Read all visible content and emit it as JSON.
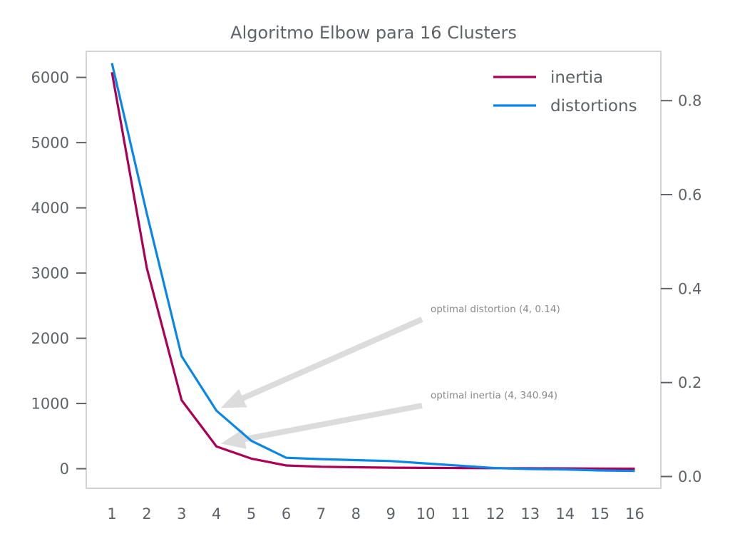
{
  "chart_data": {
    "type": "line",
    "title": "Algoritmo Elbow para 16 Clusters",
    "x": [
      1,
      2,
      3,
      4,
      5,
      6,
      7,
      8,
      9,
      10,
      11,
      12,
      13,
      14,
      15,
      16
    ],
    "x_ticks": [
      "1",
      "2",
      "3",
      "4",
      "5",
      "6",
      "7",
      "8",
      "9",
      "10",
      "11",
      "12",
      "13",
      "14",
      "15",
      "16"
    ],
    "y_left_ticks": [
      "0",
      "1000",
      "2000",
      "3000",
      "4000",
      "5000",
      "6000"
    ],
    "y_left_lim": [
      -300,
      6400
    ],
    "y_right_ticks": [
      "0.0",
      "0.2",
      "0.4",
      "0.6",
      "0.8"
    ],
    "y_right_lim": [
      -0.025,
      0.905
    ],
    "grid": false,
    "legend_position": "top-right",
    "series": [
      {
        "name": "inertia",
        "axis": "left",
        "color": "#aa0055",
        "values": [
          6080,
          3080,
          1050,
          340.94,
          155,
          50,
          30,
          22,
          16,
          13,
          10,
          8,
          6,
          5,
          3,
          1
        ]
      },
      {
        "name": "distortions",
        "axis": "right",
        "color": "#0a86e5",
        "values": [
          0.88,
          0.56,
          0.256,
          0.14,
          0.076,
          0.04,
          0.037,
          0.035,
          0.033,
          0.028,
          0.023,
          0.018,
          0.016,
          0.015,
          0.013,
          0.012
        ]
      }
    ],
    "annotations": [
      {
        "text": "optimal distortion (4, 0.14)",
        "x": 4,
        "y": 0.14,
        "axis": "right"
      },
      {
        "text": "optimal inertia (4, 340.94)",
        "x": 4,
        "y": 340.94,
        "axis": "left"
      }
    ],
    "arrow_color": "#dcdcdc",
    "frame_color": "#d3d3d3",
    "text_color": "#5f6368"
  }
}
